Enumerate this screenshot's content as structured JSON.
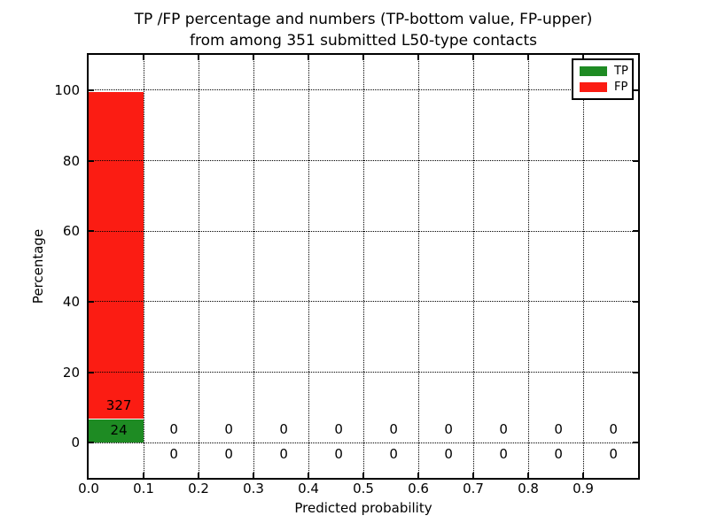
{
  "figure": {
    "title_line1": "TP /FP percentage and numbers (TP-bottom value, FP-upper)",
    "title_line2": "from among 351 submitted L50-type contacts"
  },
  "chart_data": {
    "type": "bar",
    "stacked": true,
    "title": "TP /FP percentage and numbers (TP-bottom value, FP-upper) from among 351 submitted L50-type contacts",
    "xlabel": "Predicted probability",
    "ylabel": "Percentage",
    "total_contacts": 351,
    "xlim": [
      0.0,
      1.0
    ],
    "ylim": [
      -10,
      110
    ],
    "x_tick_labels": [
      "0.0",
      "0.1",
      "0.2",
      "0.3",
      "0.4",
      "0.5",
      "0.6",
      "0.7",
      "0.8",
      "0.9"
    ],
    "x_tick_values": [
      0.0,
      0.1,
      0.2,
      0.3,
      0.4,
      0.5,
      0.6,
      0.7,
      0.8,
      0.9
    ],
    "y_tick_values": [
      0,
      20,
      40,
      60,
      80,
      100
    ],
    "grid": {
      "style": "dotted",
      "color": "#000000",
      "drawn_above_bars": true
    },
    "bin_width": 0.1,
    "bin_centers": [
      0.05,
      0.15,
      0.25,
      0.35,
      0.45,
      0.55,
      0.65,
      0.75,
      0.85,
      0.95
    ],
    "series": [
      {
        "name": "TP",
        "color": "#1E8B23",
        "counts": [
          24,
          0,
          0,
          0,
          0,
          0,
          0,
          0,
          0,
          0
        ],
        "percent": [
          6.84,
          0,
          0,
          0,
          0,
          0,
          0,
          0,
          0,
          0
        ]
      },
      {
        "name": "FP",
        "color": "#FB1C13",
        "counts": [
          327,
          0,
          0,
          0,
          0,
          0,
          0,
          0,
          0,
          0
        ],
        "percent": [
          93.16,
          0,
          0,
          0,
          0,
          0,
          0,
          0,
          0,
          0
        ]
      }
    ],
    "annotations": {
      "fp_count_label": {
        "text": "327",
        "x": 0.055,
        "y_pct": 10.6
      },
      "tp_count_label": {
        "text": "24",
        "x": 0.055,
        "y_pct": 3.6
      },
      "upper_zero_row": {
        "text": "0",
        "y_pct": 3.8,
        "x_positions": [
          0.155,
          0.255,
          0.355,
          0.455,
          0.555,
          0.655,
          0.755,
          0.855,
          0.955
        ]
      },
      "lower_zero_row": {
        "text": "0",
        "y_pct": -3.2,
        "x_positions": [
          0.155,
          0.255,
          0.355,
          0.455,
          0.555,
          0.655,
          0.755,
          0.855,
          0.955
        ]
      }
    },
    "render": {
      "stack_top_pct": 99.5
    }
  },
  "legend": {
    "items": [
      {
        "label": "TP",
        "color": "#1E8B23"
      },
      {
        "label": "FP",
        "color": "#FB1C13"
      }
    ]
  }
}
